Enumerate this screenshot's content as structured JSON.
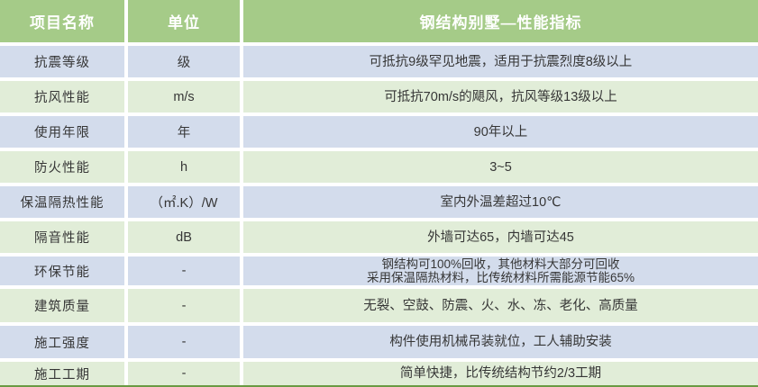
{
  "table": {
    "title": "钢结构别墅—性能指标",
    "header": {
      "col_name": "项目名称",
      "col_unit": "单位",
      "col_value": "钢结构别墅—性能指标"
    },
    "rows": [
      {
        "name": "抗震等级",
        "unit": "级",
        "value": "可抵抗9级罕见地震，适用于抗震烈度8级以上"
      },
      {
        "name": "抗风性能",
        "unit": "m/s",
        "value": "可抵抗70m/s的飓风，抗风等级13级以上"
      },
      {
        "name": "使用年限",
        "unit": "年",
        "value": "90年以上"
      },
      {
        "name": "防火性能",
        "unit": "h",
        "value": "3~5"
      },
      {
        "name": "保温隔热性能",
        "unit": "（㎡.K）/W",
        "value": "室内外温差超过10℃"
      },
      {
        "name": "隔音性能",
        "unit": "dB",
        "value": "外墙可达65，内墙可达45"
      },
      {
        "name": "环保节能",
        "unit": "-",
        "value": "钢结构可100%回收，其他材料大部分可回收\n采用保温隔热材料，比传统材料所需能源节能65%"
      },
      {
        "name": "建筑质量",
        "unit": "-",
        "value": "无裂、空鼓、防震、火、水、冻、老化、高质量"
      },
      {
        "name": "施工强度",
        "unit": "-",
        "value": "构件使用机械吊装就位，工人辅助安装"
      },
      {
        "name": "施工工期",
        "unit": "-",
        "value": "简单快捷，比传统结构节约2/3工期"
      }
    ],
    "colors": {
      "header_green": "#a5cb88",
      "row_blue": "#d3dcec",
      "row_green": "#e1edd8",
      "bottom_border": "#6a9a43",
      "header_text": "#ffffff",
      "body_text": "#363636"
    }
  }
}
